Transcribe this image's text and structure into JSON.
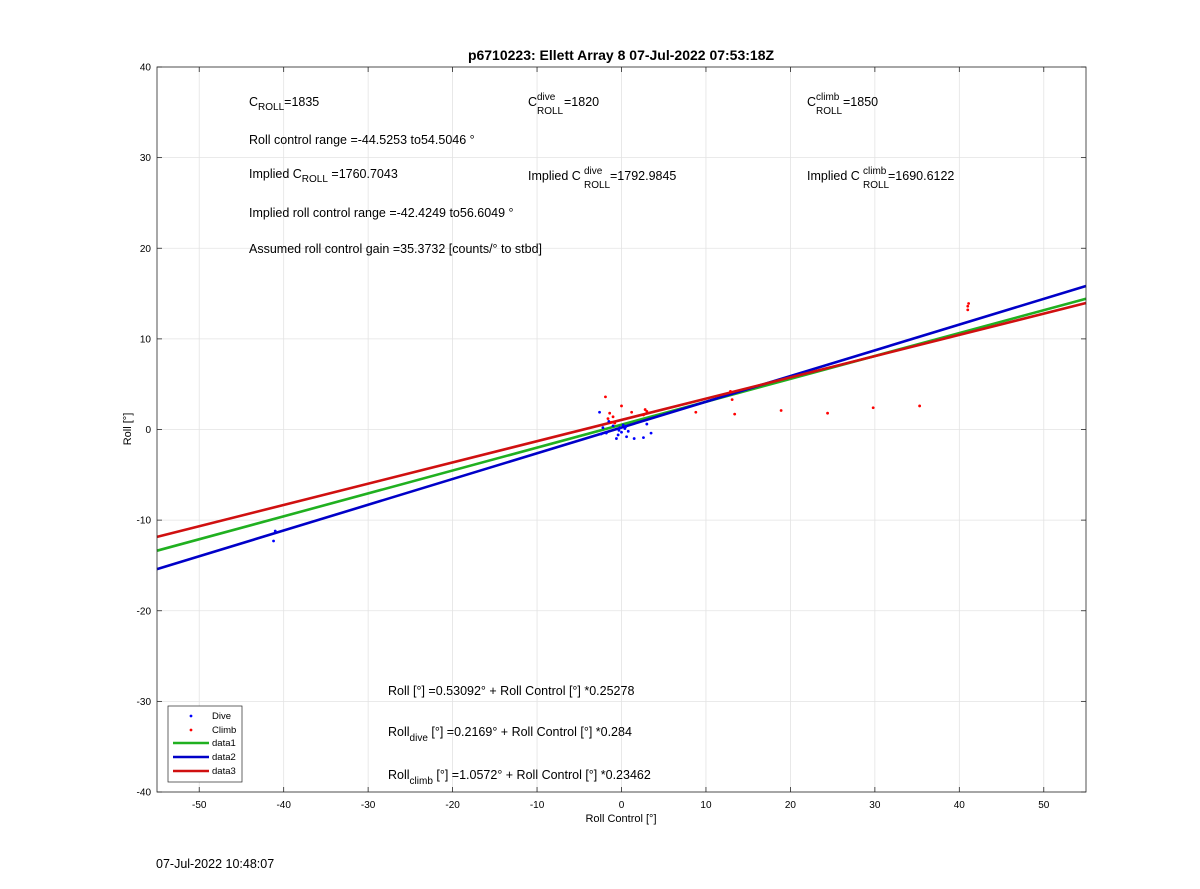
{
  "timestamp": "07-Jul-2022 10:48:07",
  "chart_data": {
    "type": "scatter",
    "title": "p6710223: Ellett Array 8 07-Jul-2022 07:53:18Z",
    "xlabel": "Roll Control [°]",
    "ylabel": "Roll [°]",
    "xlim": [
      -55,
      55
    ],
    "ylim": [
      -40,
      40
    ],
    "xticks": [
      -50,
      -40,
      -30,
      -20,
      -10,
      0,
      10,
      20,
      30,
      40,
      50
    ],
    "yticks": [
      -40,
      -30,
      -20,
      -10,
      0,
      10,
      20,
      30,
      40
    ],
    "grid": true,
    "legend_position": "bottom-left",
    "series": [
      {
        "name": "Dive",
        "kind": "points",
        "color": "#0000ff",
        "x": [
          -41.2,
          -41.0,
          -2.6,
          -2.4,
          -2.2,
          -1.8,
          -1.5,
          -1.0,
          -0.6,
          -0.4,
          -0.2,
          0.0,
          0.2,
          0.4,
          0.6,
          0.8,
          1.5,
          2.6,
          3.0,
          3.5,
          -0.3,
          0.5
        ],
        "y": [
          -12.3,
          -11.2,
          1.9,
          -0.5,
          0.2,
          -0.4,
          0.9,
          0.4,
          -1.0,
          -0.6,
          0.2,
          -0.3,
          0.5,
          0.1,
          -0.8,
          -0.2,
          -1.0,
          -0.9,
          0.6,
          -0.4,
          -0.1,
          0.3
        ]
      },
      {
        "name": "Climb",
        "kind": "points",
        "color": "#ff0000",
        "x": [
          -1.9,
          -1.6,
          -1.4,
          -1.2,
          -1.0,
          -0.8,
          0.0,
          1.2,
          2.6,
          2.8,
          3.0,
          8.8,
          12.9,
          13.1,
          13.4,
          18.9,
          24.4,
          29.8,
          35.3,
          41.0,
          41.0,
          41.1
        ],
        "y": [
          3.6,
          1.2,
          1.8,
          0.8,
          1.4,
          0.7,
          2.6,
          1.9,
          1.6,
          2.2,
          2.0,
          1.9,
          4.2,
          3.3,
          1.7,
          2.1,
          1.8,
          2.4,
          2.6,
          13.2,
          13.6,
          13.9
        ]
      },
      {
        "name": "data1",
        "kind": "line",
        "color": "#20b020",
        "intercept": 0.53092,
        "slope": 0.25278
      },
      {
        "name": "data2",
        "kind": "line",
        "color": "#0000c8",
        "intercept": 0.2169,
        "slope": 0.284
      },
      {
        "name": "data3",
        "kind": "line",
        "color": "#d01010",
        "intercept": 1.0572,
        "slope": 0.23462
      }
    ],
    "annotations": {
      "c_roll": {
        "label": "C",
        "sub": "ROLL",
        "value": "=1835"
      },
      "c_roll_dive": {
        "label": "C",
        "sup": "dive",
        "sub": "ROLL",
        "value": " =1820"
      },
      "c_roll_climb": {
        "label": "C",
        "sup": "climb",
        "sub": "ROLL",
        "value": " =1850"
      },
      "roll_range": "Roll control range =-44.5253 to54.5046 °",
      "implied_c_roll": {
        "prefix": "Implied C",
        "sub": "ROLL",
        "value": " =1760.7043"
      },
      "implied_c_roll_dive": {
        "prefix": "Implied C",
        "sup": "dive",
        "sub": "ROLL",
        "value": " =1792.9845"
      },
      "implied_c_roll_climb": {
        "prefix": "Implied C",
        "sup": "climb",
        "sub": "ROLL",
        "value": " =1690.6122"
      },
      "implied_range": "Implied roll control range =-42.4249 to56.6049 °",
      "gain": "Assumed roll control gain =35.3732 [counts/° to stbd]",
      "fit_all": {
        "prefix": "Roll",
        "sub": "",
        "value": " [°] =0.53092° + Roll Control [°] *0.25278"
      },
      "fit_dive": {
        "prefix": "Roll",
        "sub": "dive",
        "value": " [°] =0.2169° + Roll Control [°] *0.284"
      },
      "fit_climb": {
        "prefix": "Roll",
        "sub": "climb",
        "value": " [°] =1.0572° + Roll Control [°] *0.23462"
      }
    }
  }
}
